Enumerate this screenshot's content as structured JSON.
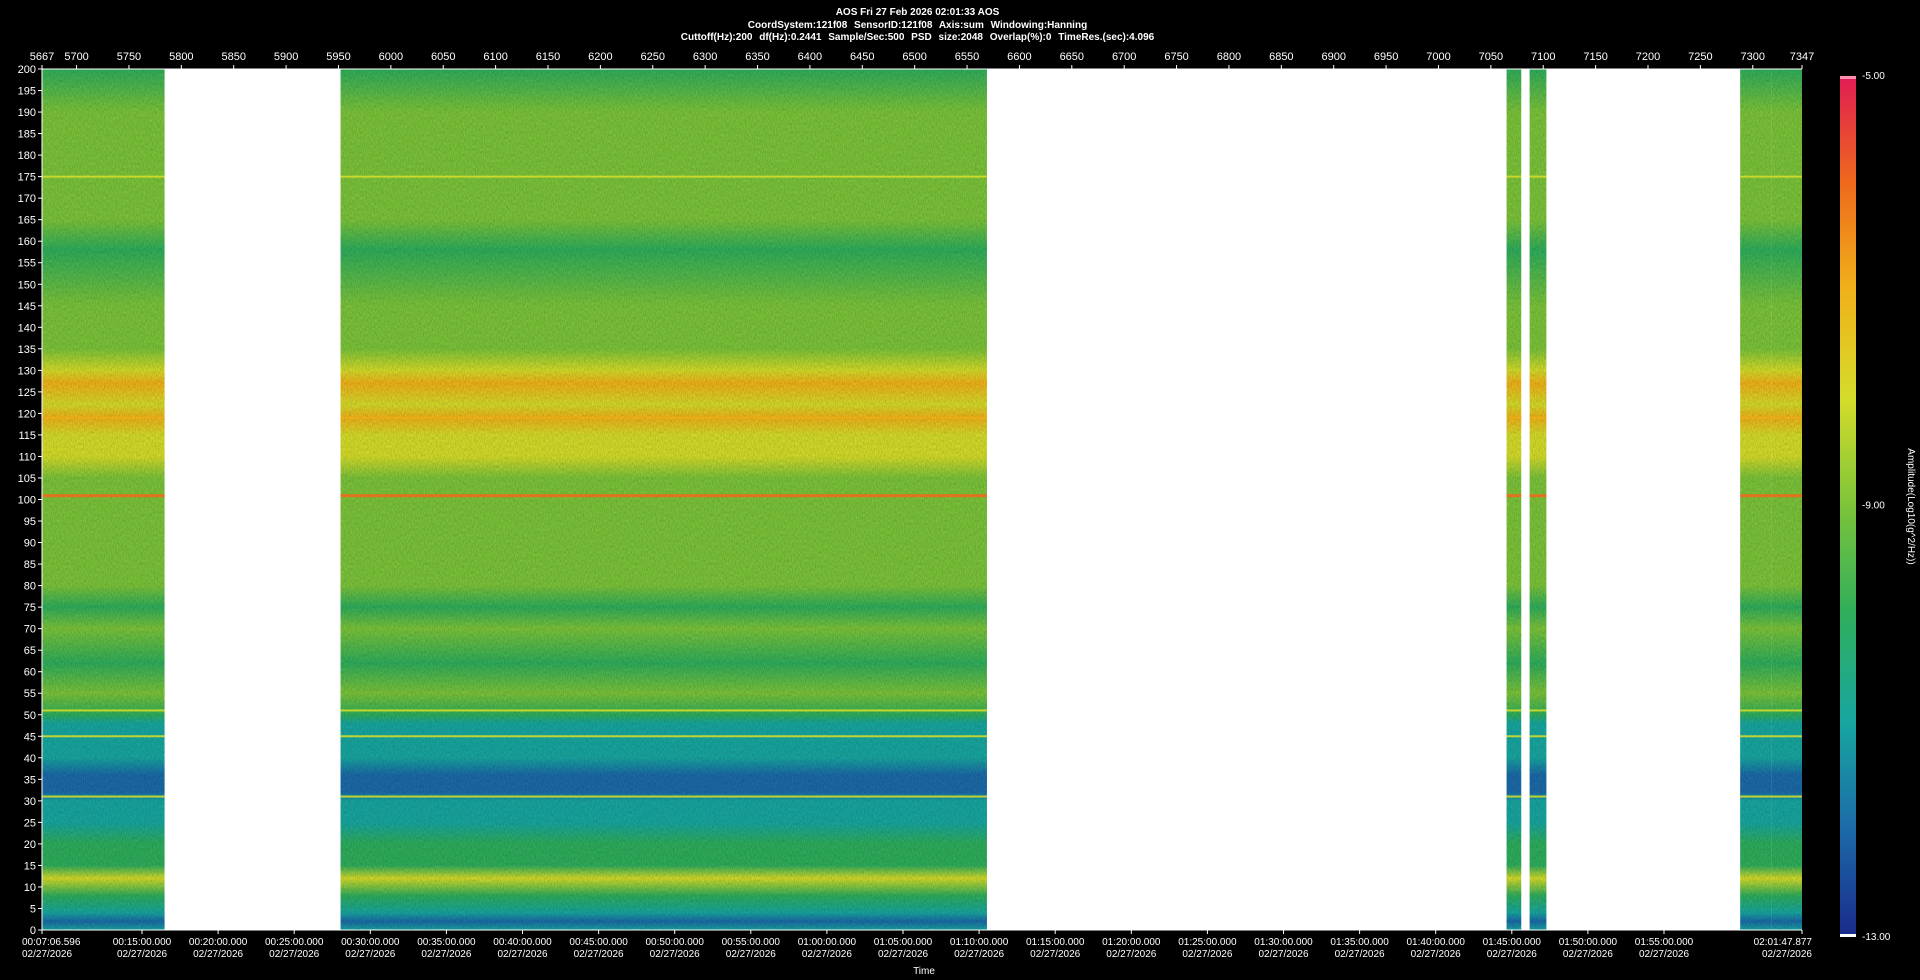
{
  "header": {
    "line1": "AOS  Fri 27 Feb 2026 02:01:33  AOS",
    "line2": "CoordSystem:121f08   SensorID:121f08   Axis:sum   Windowing:Hanning",
    "line3": "Cuttoff(Hz):200     df(Hz):0.2441     Sample/Sec:500     PSD size:2048     Overlap(%):0     TimeRes.(sec):4.096"
  },
  "chart_data": {
    "type": "heatmap",
    "title": "",
    "xlabel": "Time",
    "ylabel": "",
    "colorbar_label": "Amplitude(Log10(g^2/Hz))",
    "top_axis": {
      "range": [
        5667,
        7347
      ],
      "ticks": [
        5667,
        5700,
        5750,
        5800,
        5850,
        5900,
        5950,
        6000,
        6050,
        6100,
        6150,
        6200,
        6250,
        6300,
        6350,
        6400,
        6450,
        6500,
        6550,
        6600,
        6650,
        6700,
        6750,
        6800,
        6850,
        6900,
        6950,
        7000,
        7050,
        7100,
        7150,
        7200,
        7250,
        7300,
        7347
      ]
    },
    "y_axis": {
      "range": [
        0,
        200
      ],
      "step": 5
    },
    "x_axis": {
      "start_label": "00:07:06.596",
      "end_label": "02:01:47.877",
      "date_label": "02/27/2026",
      "tick_labels": [
        "00:15:00.000",
        "00:20:00.000",
        "00:25:00.000",
        "00:30:00.000",
        "00:35:00.000",
        "00:40:00.000",
        "00:45:00.000",
        "00:50:00.000",
        "00:55:00.000",
        "01:00:00.000",
        "01:05:00.000",
        "01:10:00.000",
        "01:15:00.000",
        "01:20:00.000",
        "01:25:00.000",
        "01:30:00.000",
        "01:35:00.000",
        "01:40:00.000",
        "01:45:00.000",
        "01:50:00.000",
        "01:55:00.000"
      ]
    },
    "colorbar": {
      "min": -13.0,
      "max": -5.0,
      "labels": [
        "-5.00",
        "-9.00",
        "-13.00"
      ],
      "colors": [
        "#1a2a8a",
        "#1c6aa8",
        "#18a6a0",
        "#2fae5c",
        "#7cc43a",
        "#d4dc2a",
        "#f0b21a",
        "#ee6a1c",
        "#e01c54"
      ]
    },
    "data_segments": [
      [
        5667,
        5784
      ],
      [
        5952,
        6569
      ],
      [
        7065,
        7079
      ],
      [
        7087,
        7103
      ],
      [
        7288,
        7318
      ],
      [
        7318,
        7347
      ]
    ],
    "horizontal_lines_hz": [
      101,
      51,
      45,
      31,
      175,
      119
    ]
  }
}
